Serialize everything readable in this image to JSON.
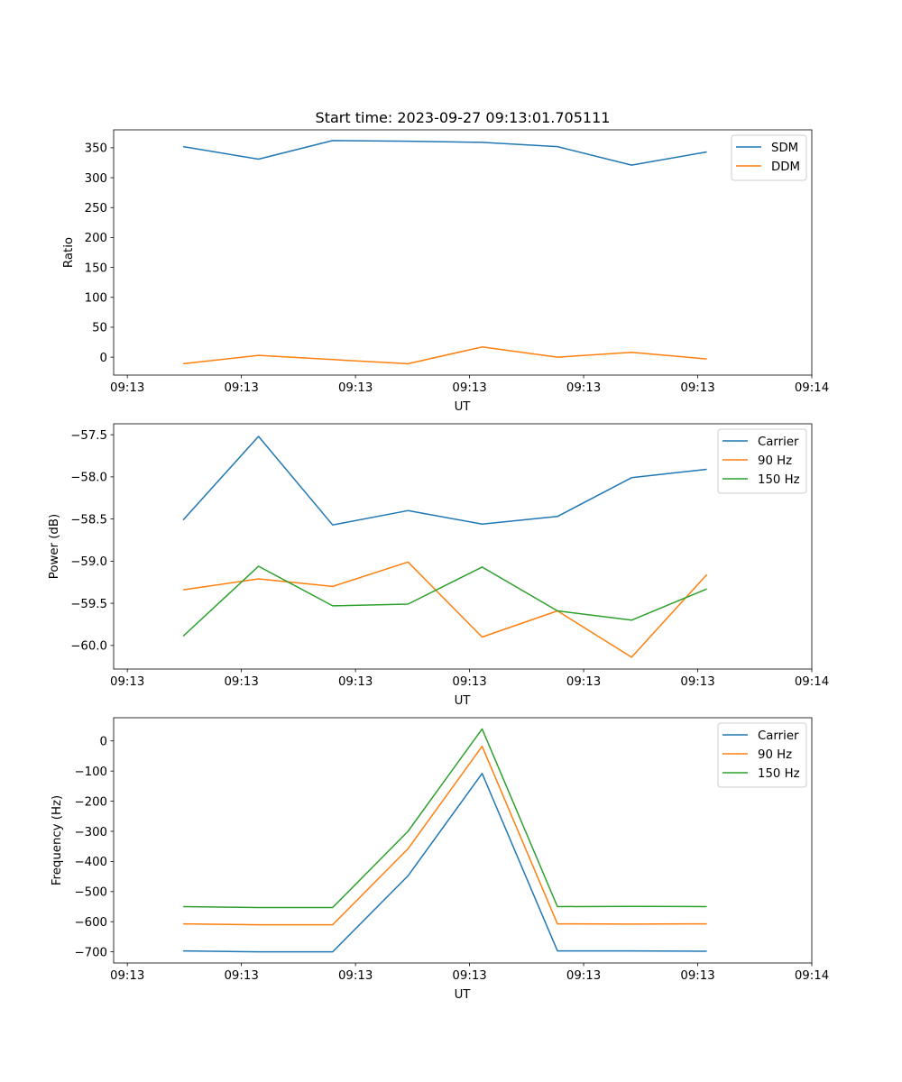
{
  "figure": {
    "title": "Start time: 2023-09-27 09:13:01.705111"
  },
  "colors": {
    "blue": "#1f77b4",
    "orange": "#ff7f0e",
    "green": "#2ca02c"
  },
  "chart_data": [
    {
      "type": "line",
      "title": "Start time: 2023-09-27 09:13:01.705111",
      "xlabel": "UT",
      "ylabel": "Ratio",
      "x_tick_labels": [
        "09:13",
        "09:13",
        "09:13",
        "09:13",
        "09:13",
        "09:13",
        "09:14"
      ],
      "x_ticks": [
        0,
        1,
        2,
        3,
        4,
        5,
        6
      ],
      "xlim": [
        -0.12,
        6.0
      ],
      "x": [
        0.49,
        1.15,
        1.8,
        2.46,
        3.11,
        3.77,
        4.42,
        5.08
      ],
      "y_ticks": [
        0,
        50,
        100,
        150,
        200,
        250,
        300,
        350
      ],
      "y_tick_labels": [
        "0",
        "50",
        "100",
        "150",
        "200",
        "250",
        "300",
        "350"
      ],
      "ylim": [
        -30,
        380
      ],
      "grid": false,
      "legend": "top-right",
      "series": [
        {
          "name": "SDM",
          "color": "#1f77b4",
          "values": [
            352,
            331,
            362,
            361,
            359,
            352,
            321,
            343
          ]
        },
        {
          "name": "DDM",
          "color": "#ff7f0e",
          "values": [
            -11,
            3,
            -4,
            -11,
            17,
            0,
            8,
            -3
          ]
        }
      ]
    },
    {
      "type": "line",
      "title": "",
      "xlabel": "UT",
      "ylabel": "Power (dB)",
      "x_tick_labels": [
        "09:13",
        "09:13",
        "09:13",
        "09:13",
        "09:13",
        "09:13",
        "09:14"
      ],
      "x_ticks": [
        0,
        1,
        2,
        3,
        4,
        5,
        6
      ],
      "xlim": [
        -0.12,
        6.0
      ],
      "x": [
        0.49,
        1.15,
        1.8,
        2.46,
        3.11,
        3.77,
        4.42,
        5.08
      ],
      "y_ticks": [
        -60.0,
        -59.5,
        -59.0,
        -58.5,
        -58.0,
        -57.5
      ],
      "y_tick_labels": [
        "−60.0",
        "−59.5",
        "−59.0",
        "−58.5",
        "−58.0",
        "−57.5"
      ],
      "ylim": [
        -60.28,
        -57.37
      ],
      "grid": false,
      "legend": "top-right",
      "series": [
        {
          "name": "Carrier",
          "color": "#1f77b4",
          "values": [
            -58.51,
            -57.52,
            -58.57,
            -58.4,
            -58.56,
            -58.47,
            -58.01,
            -57.91
          ]
        },
        {
          "name": "90 Hz",
          "color": "#ff7f0e",
          "values": [
            -59.34,
            -59.21,
            -59.3,
            -59.01,
            -59.9,
            -59.59,
            -60.14,
            -59.16
          ]
        },
        {
          "name": "150 Hz",
          "color": "#2ca02c",
          "values": [
            -59.89,
            -59.06,
            -59.53,
            -59.51,
            -59.07,
            -59.59,
            -59.7,
            -59.33
          ]
        }
      ]
    },
    {
      "type": "line",
      "title": "",
      "xlabel": "UT",
      "ylabel": "Frequency (Hz)",
      "x_tick_labels": [
        "09:13",
        "09:13",
        "09:13",
        "09:13",
        "09:13",
        "09:13",
        "09:14"
      ],
      "x_ticks": [
        0,
        1,
        2,
        3,
        4,
        5,
        6
      ],
      "xlim": [
        -0.12,
        6.0
      ],
      "x": [
        0.49,
        1.15,
        1.8,
        2.46,
        3.11,
        3.77,
        4.42,
        5.08
      ],
      "y_ticks": [
        -700,
        -600,
        -500,
        -400,
        -300,
        -200,
        -100,
        0
      ],
      "y_tick_labels": [
        "−700",
        "−600",
        "−500",
        "−400",
        "−300",
        "−200",
        "−100",
        "0"
      ],
      "ylim": [
        -737,
        77
      ],
      "grid": false,
      "legend": "top-right",
      "series": [
        {
          "name": "Carrier",
          "color": "#1f77b4",
          "values": [
            -697,
            -700,
            -700,
            -448,
            -108,
            -697,
            -697,
            -698
          ]
        },
        {
          "name": "90 Hz",
          "color": "#ff7f0e",
          "values": [
            -607,
            -610,
            -610,
            -358,
            -18,
            -607,
            -608,
            -607
          ]
        },
        {
          "name": "150 Hz",
          "color": "#2ca02c",
          "values": [
            -550,
            -553,
            -553,
            -300,
            40,
            -550,
            -549,
            -550
          ]
        }
      ]
    }
  ]
}
